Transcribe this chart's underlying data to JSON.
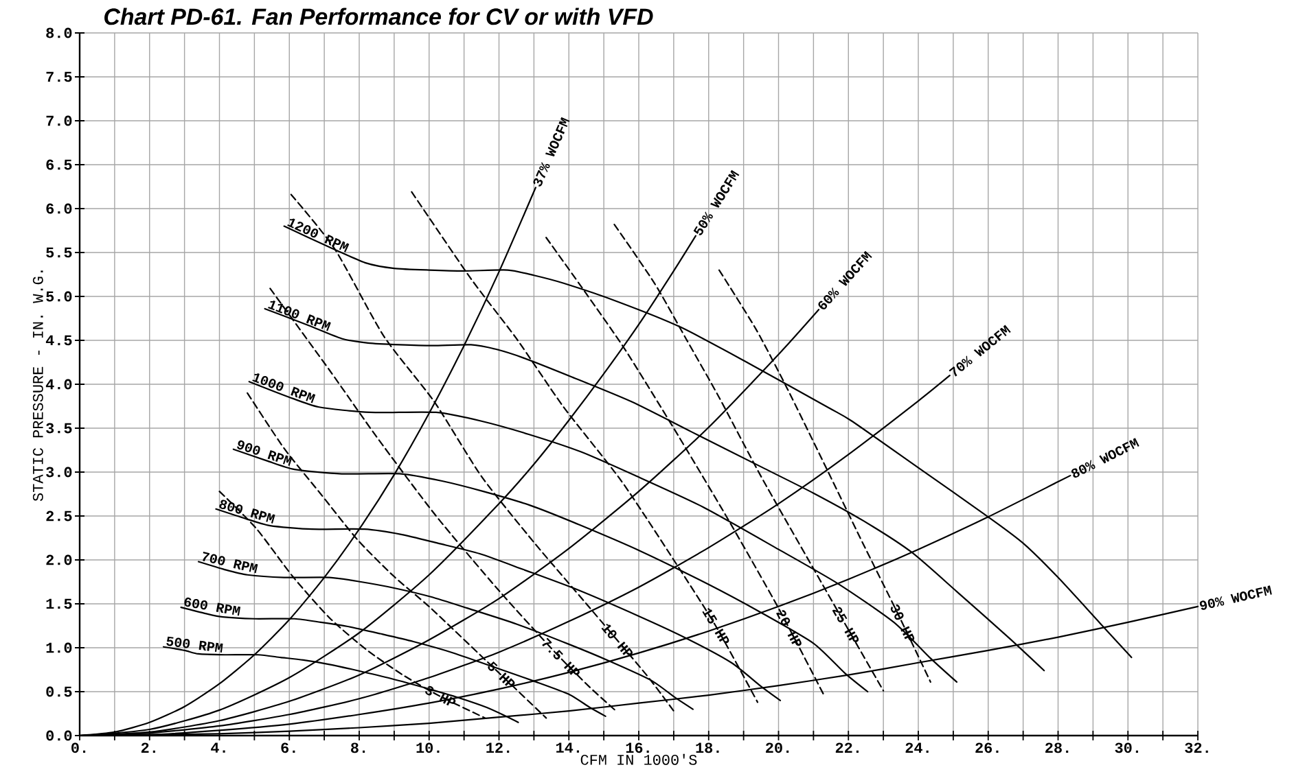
{
  "chart_data": {
    "type": "line",
    "title": "Chart PD-61. Fan Performance for CV or with VFD",
    "xlabel": "CFM IN 1000'S",
    "ylabel": "STATIC PRESSURE - IN. W.G.",
    "xlim": [
      0,
      32
    ],
    "ylim": [
      0,
      8
    ],
    "xticks": [
      {
        "value": 0,
        "label": "0."
      },
      {
        "value": 1,
        "label": null
      },
      {
        "value": 2,
        "label": "2."
      },
      {
        "value": 3,
        "label": null
      },
      {
        "value": 4,
        "label": "4."
      },
      {
        "value": 5,
        "label": null
      },
      {
        "value": 6,
        "label": "6."
      },
      {
        "value": 7,
        "label": null
      },
      {
        "value": 8,
        "label": "8."
      },
      {
        "value": 9,
        "label": null
      },
      {
        "value": 10,
        "label": "10."
      },
      {
        "value": 11,
        "label": null
      },
      {
        "value": 12,
        "label": "12."
      },
      {
        "value": 13,
        "label": null
      },
      {
        "value": 14,
        "label": "14."
      },
      {
        "value": 15,
        "label": null
      },
      {
        "value": 16,
        "label": "16."
      },
      {
        "value": 17,
        "label": null
      },
      {
        "value": 18,
        "label": "18."
      },
      {
        "value": 19,
        "label": null
      },
      {
        "value": 20,
        "label": "20."
      },
      {
        "value": 21,
        "label": null
      },
      {
        "value": 22,
        "label": "22."
      },
      {
        "value": 23,
        "label": null
      },
      {
        "value": 24,
        "label": "24."
      },
      {
        "value": 25,
        "label": null
      },
      {
        "value": 26,
        "label": "26."
      },
      {
        "value": 27,
        "label": null
      },
      {
        "value": 28,
        "label": "28."
      },
      {
        "value": 29,
        "label": null
      },
      {
        "value": 30,
        "label": "30."
      },
      {
        "value": 31,
        "label": null
      },
      {
        "value": 32,
        "label": "32."
      }
    ],
    "yticks": [
      {
        "value": 0,
        "label": "0.0"
      },
      {
        "value": 0.5,
        "label": "0.5"
      },
      {
        "value": 1,
        "label": "1.0"
      },
      {
        "value": 1.5,
        "label": "1.5"
      },
      {
        "value": 2,
        "label": "2.0"
      },
      {
        "value": 2.5,
        "label": "2.5"
      },
      {
        "value": 3,
        "label": "3.0"
      },
      {
        "value": 3.5,
        "label": "3.5"
      },
      {
        "value": 4,
        "label": "4.0"
      },
      {
        "value": 4.5,
        "label": "4.5"
      },
      {
        "value": 5,
        "label": "5.0"
      },
      {
        "value": 5.5,
        "label": "5.5"
      },
      {
        "value": 6,
        "label": "6.0"
      },
      {
        "value": 6.5,
        "label": "6.5"
      },
      {
        "value": 7,
        "label": "7.0"
      },
      {
        "value": 7.5,
        "label": "7.5"
      },
      {
        "value": 8,
        "label": "8.0"
      }
    ],
    "grid": true,
    "marker": "none",
    "line_style": "solid",
    "series": [
      {
        "name": "1200 RPM",
        "color": "#000000",
        "x": [
          5.85,
          7.15,
          8.2,
          9.0,
          10.0,
          11.0,
          12.25,
          13.0,
          13.85,
          15.4,
          17.2,
          19.05,
          21.4,
          22.1,
          24.0,
          26.0,
          27.0,
          28.0,
          29.2,
          30.1
        ],
        "values": [
          5.8,
          5.56,
          5.38,
          5.32,
          5.3,
          5.29,
          5.3,
          5.24,
          5.15,
          4.94,
          4.65,
          4.26,
          3.74,
          3.58,
          3.05,
          2.49,
          2.19,
          1.8,
          1.28,
          0.89
        ]
      },
      {
        "name": "1100 RPM",
        "color": "#000000",
        "x": [
          5.3,
          6.55,
          7.5,
          8.25,
          9.15,
          10.1,
          11.2,
          11.9,
          12.7,
          14.1,
          15.8,
          17.5,
          19.6,
          21.0,
          22.45,
          23.8,
          25.1,
          26.6,
          27.6
        ],
        "values": [
          4.86,
          4.67,
          4.52,
          4.47,
          4.45,
          4.44,
          4.45,
          4.4,
          4.3,
          4.08,
          3.8,
          3.46,
          3.04,
          2.76,
          2.44,
          2.09,
          1.64,
          1.11,
          0.74
        ]
      },
      {
        "name": "1000 RPM",
        "color": "#000000",
        "x": [
          4.85,
          5.95,
          6.85,
          8.3,
          10.2,
          11.5,
          12.85,
          14.35,
          15.9,
          17.85,
          20.0,
          21.7,
          23.3,
          24.35,
          25.1
        ],
        "values": [
          4.03,
          3.86,
          3.74,
          3.68,
          3.68,
          3.58,
          3.43,
          3.23,
          2.96,
          2.6,
          2.12,
          1.73,
          1.29,
          0.88,
          0.61
        ]
      },
      {
        "name": "900 RPM",
        "color": "#000000",
        "x": [
          4.4,
          5.35,
          6.15,
          7.5,
          9.2,
          10.35,
          11.55,
          12.9,
          14.3,
          16.05,
          18.0,
          19.5,
          21.0,
          21.9,
          22.55
        ],
        "values": [
          3.26,
          3.13,
          3.03,
          2.98,
          2.98,
          2.9,
          2.78,
          2.62,
          2.4,
          2.1,
          1.72,
          1.4,
          1.05,
          0.71,
          0.5
        ]
      },
      {
        "name": "800 RPM",
        "color": "#000000",
        "x": [
          3.9,
          4.75,
          5.45,
          6.65,
          8.15,
          9.2,
          10.25,
          11.45,
          12.7,
          14.25,
          16.0,
          17.35,
          18.65,
          19.5,
          20.05
        ],
        "values": [
          2.58,
          2.47,
          2.39,
          2.35,
          2.35,
          2.29,
          2.19,
          2.07,
          1.89,
          1.66,
          1.36,
          1.11,
          0.83,
          0.56,
          0.4
        ]
      },
      {
        "name": "700 RPM",
        "color": "#000000",
        "x": [
          3.4,
          4.15,
          4.8,
          5.85,
          7.15,
          8.05,
          9.0,
          10.05,
          11.1,
          12.5,
          14.0,
          15.15,
          16.35,
          17.05,
          17.55
        ],
        "values": [
          1.98,
          1.89,
          1.83,
          1.8,
          1.8,
          1.75,
          1.68,
          1.58,
          1.45,
          1.27,
          1.04,
          0.85,
          0.63,
          0.43,
          0.3
        ]
      },
      {
        "name": "600 RPM",
        "color": "#000000",
        "x": [
          2.9,
          3.6,
          4.1,
          5.0,
          6.15,
          6.9,
          7.7,
          8.6,
          9.55,
          10.7,
          12.0,
          13.0,
          14.0,
          14.6,
          15.05
        ],
        "values": [
          1.46,
          1.39,
          1.35,
          1.33,
          1.33,
          1.29,
          1.24,
          1.16,
          1.07,
          0.94,
          0.76,
          0.62,
          0.47,
          0.32,
          0.22
        ]
      },
      {
        "name": "500 RPM",
        "color": "#000000",
        "x": [
          2.4,
          3.0,
          3.4,
          4.15,
          5.1,
          5.75,
          6.4,
          7.15,
          7.95,
          8.9,
          10.0,
          10.85,
          11.65,
          12.2,
          12.55
        ],
        "values": [
          1.01,
          0.97,
          0.93,
          0.92,
          0.92,
          0.89,
          0.86,
          0.81,
          0.74,
          0.65,
          0.53,
          0.43,
          0.32,
          0.22,
          0.15
        ]
      },
      {
        "name": "37% WOCFM",
        "color": "#000000",
        "x": [
          0,
          1,
          2,
          3,
          4,
          5,
          6,
          7,
          8,
          9,
          10,
          11,
          12,
          13.05
        ],
        "values": [
          0,
          0.04,
          0.15,
          0.33,
          0.59,
          0.92,
          1.32,
          1.8,
          2.35,
          2.97,
          3.67,
          4.44,
          5.28,
          6.24
        ]
      },
      {
        "name": "50% WOCFM",
        "color": "#000000",
        "x": [
          0,
          2,
          4,
          6,
          8,
          10,
          12,
          13,
          14,
          15,
          16,
          17,
          17.63
        ],
        "values": [
          0,
          0.07,
          0.29,
          0.66,
          1.17,
          1.83,
          2.64,
          3.09,
          3.59,
          4.12,
          4.68,
          5.29,
          5.69
        ]
      },
      {
        "name": "60% WOCFM",
        "color": "#000000",
        "x": [
          0,
          2,
          4,
          6,
          8,
          10,
          12,
          14,
          16,
          18,
          20,
          21.15
        ],
        "values": [
          0,
          0.04,
          0.17,
          0.39,
          0.69,
          1.09,
          1.56,
          2.13,
          2.78,
          3.51,
          4.34,
          4.85
        ]
      },
      {
        "name": "70% WOCFM",
        "color": "#000000",
        "x": [
          0,
          2,
          4,
          6,
          8,
          10,
          12,
          14,
          16,
          18,
          20,
          22,
          24,
          24.9
        ],
        "values": [
          0,
          0.03,
          0.11,
          0.24,
          0.42,
          0.66,
          0.95,
          1.3,
          1.69,
          2.14,
          2.64,
          3.2,
          3.81,
          4.1
        ]
      },
      {
        "name": "80% WOCFM",
        "color": "#000000",
        "x": [
          0,
          2,
          4,
          6,
          8,
          10,
          12,
          14,
          16,
          18,
          20,
          22,
          24,
          26,
          28,
          28.35
        ],
        "values": [
          0,
          0.01,
          0.06,
          0.13,
          0.24,
          0.37,
          0.53,
          0.72,
          0.94,
          1.19,
          1.47,
          1.78,
          2.12,
          2.49,
          2.89,
          2.96
        ]
      },
      {
        "name": "90% WOCFM",
        "color": "#000000",
        "x": [
          0,
          2,
          4,
          6,
          8,
          10,
          12,
          14,
          16,
          18,
          20,
          22,
          24,
          26,
          28,
          30,
          32
        ],
        "values": [
          0,
          0.01,
          0.02,
          0.05,
          0.09,
          0.14,
          0.21,
          0.28,
          0.37,
          0.46,
          0.57,
          0.69,
          0.83,
          0.97,
          1.12,
          1.29,
          1.47
        ]
      },
      {
        "name": "3 HP",
        "color": "#000000",
        "line_style": "dashed",
        "x": [
          4.0,
          5.05,
          6.1,
          7.15,
          8.2,
          9.25,
          10.3,
          11.6
        ],
        "values": [
          2.78,
          2.36,
          1.81,
          1.34,
          0.98,
          0.69,
          0.45,
          0.2
        ]
      },
      {
        "name": "5 HP",
        "color": "#000000",
        "line_style": "dashed",
        "x": [
          4.8,
          5.85,
          6.9,
          7.95,
          9.0,
          10.05,
          11.85,
          13.35
        ],
        "values": [
          3.9,
          3.27,
          2.75,
          2.23,
          1.81,
          1.45,
          0.77,
          0.2
        ]
      },
      {
        "name": "7.5 HP",
        "color": "#000000",
        "line_style": "dashed",
        "x": [
          5.45,
          7.15,
          8.5,
          10.2,
          12.0,
          13.6,
          14.6,
          15.35
        ],
        "values": [
          5.09,
          4.16,
          3.4,
          2.5,
          1.65,
          0.95,
          0.55,
          0.28
        ]
      },
      {
        "name": "10 HP",
        "color": "#000000",
        "line_style": "dashed",
        "x": [
          6.05,
          7.3,
          8.7,
          10.15,
          11.5,
          13.0,
          14.5,
          16.2,
          17.0
        ],
        "values": [
          6.16,
          5.54,
          4.55,
          3.8,
          2.95,
          2.2,
          1.5,
          0.7,
          0.28
        ]
      },
      {
        "name": "15 HP",
        "color": "#000000",
        "line_style": "dashed",
        "x": [
          9.5,
          11.2,
          12.5,
          13.85,
          15.5,
          17.0,
          18.2,
          19.4
        ],
        "values": [
          6.19,
          5.2,
          4.52,
          3.74,
          2.9,
          2.0,
          1.25,
          0.38
        ]
      },
      {
        "name": "20 HP",
        "color": "#000000",
        "line_style": "dashed",
        "x": [
          13.35,
          14.5,
          15.6,
          17.0,
          18.5,
          20.0,
          21.3
        ],
        "values": [
          5.67,
          5.03,
          4.4,
          3.5,
          2.5,
          1.45,
          0.46
        ]
      },
      {
        "name": "25 HP",
        "color": "#000000",
        "line_style": "dashed",
        "x": [
          15.3,
          16.45,
          17.35,
          18.3,
          19.5,
          21.0,
          23.0
        ],
        "values": [
          5.82,
          5.15,
          4.52,
          3.85,
          2.95,
          1.9,
          0.51
        ]
      },
      {
        "name": "30 HP",
        "color": "#000000",
        "line_style": "dashed",
        "x": [
          18.3,
          19.35,
          20.25,
          21.3,
          22.4,
          23.4,
          24.35
        ],
        "values": [
          5.3,
          4.63,
          3.95,
          3.1,
          2.2,
          1.4,
          0.61
        ]
      }
    ]
  }
}
